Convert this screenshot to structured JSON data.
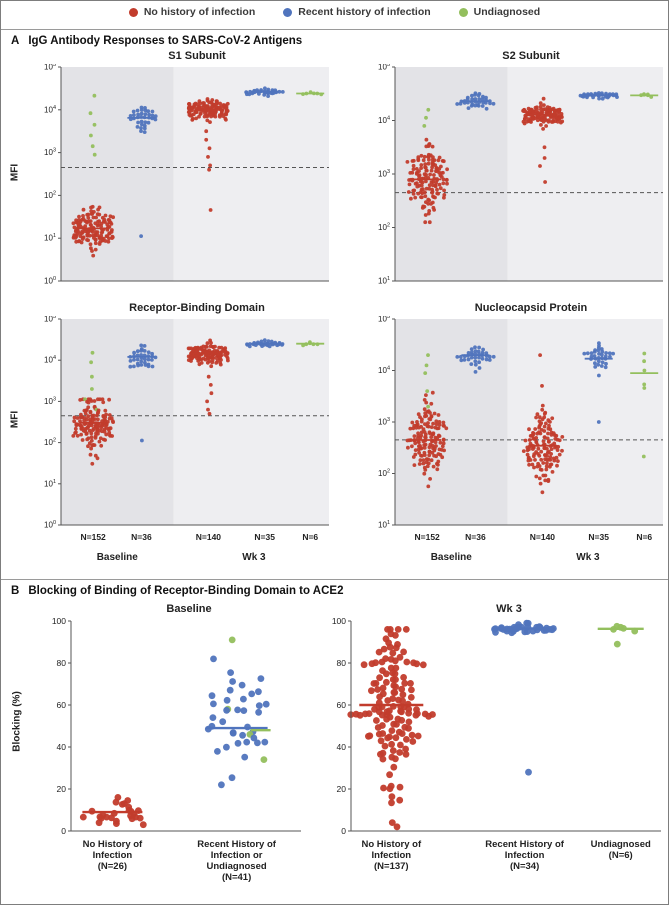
{
  "legend": {
    "items": [
      {
        "color": "red",
        "label": "No history of infection"
      },
      {
        "color": "blue",
        "label": "Recent history of infection"
      },
      {
        "color": "green",
        "label": "Undiagnosed"
      }
    ]
  },
  "chart_data": {
    "type": "scatter",
    "colors": {
      "red": "#c23c2c",
      "blue": "#5074bd",
      "green": "#93bf5d"
    },
    "region_colors": {
      "baseline": "#e3e3e7",
      "wk3": "#eeeef1"
    },
    "panelA": {
      "label": "A",
      "title": "IgG Antibody Responses to SARS-CoV-2 Antigens",
      "ylabel": "MFI",
      "threshold_log": 2.653,
      "regions": [
        {
          "x0": 0,
          "x1": 0.42,
          "key": "baseline"
        },
        {
          "x0": 0.42,
          "x1": 1.0,
          "key": "wk3"
        }
      ],
      "n_labels": [
        "N=152",
        "N=36",
        "N=140",
        "N=35",
        "N=6"
      ],
      "sections": [
        {
          "label": "Baseline",
          "x": 0.21
        },
        {
          "label": "Wk 3",
          "x": 0.72
        }
      ],
      "subplots": [
        {
          "title": "S1 Subunit",
          "scale": "log",
          "ymin": 0,
          "ymax": 5,
          "groups": [
            {
              "color": "red",
              "x": 0.12,
              "n": 146,
              "mu": 1.22,
              "sigma": 0.22,
              "min": 0.45,
              "max": 2.0,
              "median": 1.23,
              "jx": 6,
              "extra": [
                {
                  "v": 4.33,
                  "color": "green"
                },
                {
                  "v": 3.92,
                  "color": "green"
                },
                {
                  "v": 3.65,
                  "color": "green"
                },
                {
                  "v": 3.4,
                  "color": "green"
                },
                {
                  "v": 3.15,
                  "color": "green"
                },
                {
                  "v": 2.95,
                  "color": "green"
                }
              ]
            },
            {
              "color": "blue",
              "x": 0.3,
              "n": 35,
              "mu": 3.82,
              "sigma": 0.18,
              "min": 3.3,
              "max": 4.45,
              "median": 3.81,
              "extra": [
                {
                  "v": 1.05
                }
              ]
            },
            {
              "color": "red",
              "x": 0.55,
              "n": 133,
              "mu": 4.0,
              "sigma": 0.11,
              "min": 3.55,
              "max": 4.45,
              "median": 4.0,
              "jx": 6,
              "extra": [
                {
                  "v": 3.5
                },
                {
                  "v": 3.3
                },
                {
                  "v": 3.1
                },
                {
                  "v": 2.9
                },
                {
                  "v": 2.7
                },
                {
                  "v": 2.6
                },
                {
                  "v": 1.66
                }
              ]
            },
            {
              "color": "blue",
              "x": 0.76,
              "n": 35,
              "mu": 4.42,
              "sigma": 0.035,
              "min": 4.3,
              "max": 4.52,
              "median": 4.42
            },
            {
              "color": "green",
              "x": 0.93,
              "n": 6,
              "mu": 4.38,
              "sigma": 0.03,
              "min": 4.3,
              "max": 4.45,
              "median": 4.38
            }
          ]
        },
        {
          "title": "S2 Subunit",
          "scale": "log",
          "ymin": 1,
          "ymax": 5,
          "groups": [
            {
              "color": "red",
              "x": 0.12,
              "n": 149,
              "mu": 2.92,
              "sigma": 0.3,
              "min": 2.1,
              "max": 4.1,
              "median": 2.9,
              "jx": 6,
              "extra": [
                {
                  "v": 4.2,
                  "color": "green"
                },
                {
                  "v": 4.05,
                  "color": "green"
                },
                {
                  "v": 3.9,
                  "color": "green"
                }
              ]
            },
            {
              "color": "blue",
              "x": 0.3,
              "n": 36,
              "mu": 4.36,
              "sigma": 0.07,
              "min": 4.1,
              "max": 4.55,
              "median": 4.36
            },
            {
              "color": "red",
              "x": 0.55,
              "n": 136,
              "mu": 4.1,
              "sigma": 0.09,
              "min": 3.7,
              "max": 4.45,
              "median": 4.11,
              "jx": 6,
              "extra": [
                {
                  "v": 3.5
                },
                {
                  "v": 3.3
                },
                {
                  "v": 3.15
                },
                {
                  "v": 2.85
                }
              ]
            },
            {
              "color": "blue",
              "x": 0.76,
              "n": 35,
              "mu": 4.47,
              "sigma": 0.03,
              "min": 4.38,
              "max": 4.55,
              "median": 4.47
            },
            {
              "color": "green",
              "x": 0.93,
              "n": 6,
              "mu": 4.47,
              "sigma": 0.02,
              "min": 4.4,
              "max": 4.52,
              "median": 4.47
            }
          ]
        },
        {
          "title": "Receptor-Binding Domain",
          "scale": "log",
          "ymin": 0,
          "ymax": 5,
          "groups": [
            {
              "color": "red",
              "x": 0.12,
              "n": 146,
              "mu": 2.45,
              "sigma": 0.3,
              "min": 1.45,
              "max": 3.05,
              "median": 2.48,
              "jx": 6,
              "extra": [
                {
                  "v": 4.18,
                  "color": "green"
                },
                {
                  "v": 3.95,
                  "color": "green"
                },
                {
                  "v": 3.6,
                  "color": "green"
                },
                {
                  "v": 3.3,
                  "color": "green"
                },
                {
                  "v": 3.05,
                  "color": "green"
                },
                {
                  "v": 2.8,
                  "color": "green"
                }
              ]
            },
            {
              "color": "blue",
              "x": 0.3,
              "n": 35,
              "mu": 4.08,
              "sigma": 0.13,
              "min": 3.7,
              "max": 4.45,
              "median": 4.08,
              "extra": [
                {
                  "v": 2.05
                }
              ]
            },
            {
              "color": "red",
              "x": 0.55,
              "n": 134,
              "mu": 4.15,
              "sigma": 0.1,
              "min": 3.7,
              "max": 4.48,
              "median": 4.17,
              "jx": 6,
              "extra": [
                {
                  "v": 3.6
                },
                {
                  "v": 3.4
                },
                {
                  "v": 3.2
                },
                {
                  "v": 3.0
                },
                {
                  "v": 2.8
                },
                {
                  "v": 2.7
                }
              ]
            },
            {
              "color": "blue",
              "x": 0.76,
              "n": 35,
              "mu": 4.4,
              "sigma": 0.035,
              "min": 4.3,
              "max": 4.5,
              "median": 4.4
            },
            {
              "color": "green",
              "x": 0.93,
              "n": 6,
              "mu": 4.4,
              "sigma": 0.04,
              "min": 4.28,
              "max": 4.48,
              "median": 4.4
            }
          ]
        },
        {
          "title": "Nucleocapsid Protein",
          "scale": "log",
          "ymin": 1,
          "ymax": 5,
          "groups": [
            {
              "color": "red",
              "x": 0.12,
              "n": 147,
              "mu": 2.65,
              "sigma": 0.35,
              "min": 1.75,
              "max": 3.9,
              "median": 2.65,
              "jx": 6,
              "extra": [
                {
                  "v": 4.3,
                  "color": "green"
                },
                {
                  "v": 4.1,
                  "color": "green"
                },
                {
                  "v": 3.95,
                  "color": "green"
                },
                {
                  "v": 3.6,
                  "color": "green"
                },
                {
                  "v": 3.3,
                  "color": "green"
                }
              ]
            },
            {
              "color": "blue",
              "x": 0.3,
              "n": 36,
              "mu": 4.28,
              "sigma": 0.12,
              "min": 3.8,
              "max": 4.6,
              "median": 4.3
            },
            {
              "color": "red",
              "x": 0.55,
              "n": 139,
              "mu": 2.55,
              "sigma": 0.35,
              "min": 1.45,
              "max": 3.7,
              "median": 2.54,
              "jx": 6,
              "extra": [
                {
                  "v": 4.3
                }
              ]
            },
            {
              "color": "blue",
              "x": 0.76,
              "n": 34,
              "mu": 4.22,
              "sigma": 0.15,
              "min": 3.6,
              "max": 4.6,
              "median": 4.23,
              "extra": [
                {
                  "v": 3.0
                }
              ]
            },
            {
              "color": "green",
              "x": 0.93,
              "n": 0,
              "median": 3.95,
              "extra": [
                {
                  "v": 4.33
                },
                {
                  "v": 4.18
                },
                {
                  "v": 4.0
                },
                {
                  "v": 3.73
                },
                {
                  "v": 3.66
                },
                {
                  "v": 2.33
                }
              ]
            }
          ]
        }
      ]
    },
    "panelB": {
      "label": "B",
      "title": "Blocking of Binding of Receptor-Binding Domain to ACE2",
      "ylabel": "Blocking (%)",
      "subplots": [
        {
          "title": "Baseline",
          "scale": "linear",
          "ymin": 0,
          "ymax": 100,
          "yticks": [
            0,
            20,
            40,
            60,
            80,
            100
          ],
          "groups": [
            {
              "color": "red",
              "x": 0.18,
              "n": 26,
              "mu": 9,
              "sigma": 3,
              "min": 3,
              "max": 16,
              "median": 9,
              "medw": 60,
              "maxw": 66,
              "jx": 40,
              "labels": [
                "No History of",
                "Infection",
                "(N=26)"
              ]
            },
            {
              "color": "blue",
              "x": 0.72,
              "n": 37,
              "mu": 53,
              "sigma": 20,
              "min": 22,
              "max": 95,
              "medians": [
                {
                  "v": 49,
                  "color": "blue",
                  "w": 62
                },
                {
                  "v": 48,
                  "color": "green",
                  "w": 20,
                  "dx": 24
                }
              ],
              "maxw": 80,
              "jx": 50,
              "extra": [
                {
                  "v": 34,
                  "color": "green"
                },
                {
                  "v": 46,
                  "color": "green"
                },
                {
                  "v": 58,
                  "color": "green"
                },
                {
                  "v": 91,
                  "color": "green"
                }
              ],
              "labels": [
                "Recent History of",
                "Infection or",
                "Undiagnosed",
                "(N=41)"
              ]
            }
          ]
        },
        {
          "title": "Wk 3",
          "scale": "linear",
          "ymin": 0,
          "ymax": 100,
          "yticks": [
            0,
            20,
            40,
            60,
            80,
            100
          ],
          "groups": [
            {
              "color": "red",
              "x": 0.13,
              "n": 136,
              "mu": 58,
              "sigma": 21,
              "min": 4,
              "max": 96,
              "median": 60,
              "medw": 64,
              "maxw": 88,
              "jx": 6,
              "extra": [
                {
                  "v": 2
                }
              ],
              "labels": [
                "No History of",
                "Infection",
                "(N=137)"
              ]
            },
            {
              "color": "blue",
              "x": 0.56,
              "n": 33,
              "mu": 96.5,
              "sigma": 1.2,
              "min": 93,
              "max": 99,
              "median": 96.5,
              "medw": 56,
              "maxw": 62,
              "jx": 8,
              "extra": [
                {
                  "v": 28
                }
              ],
              "labels": [
                "Recent History of",
                "Infection",
                "(N=34)"
              ]
            },
            {
              "color": "green",
              "x": 0.87,
              "n": 0,
              "median": 96.3,
              "medw": 46,
              "maxw": 50,
              "jx": 10,
              "extra": [
                {
                  "v": 97.5
                },
                {
                  "v": 97
                },
                {
                  "v": 96.5
                },
                {
                  "v": 96
                },
                {
                  "v": 95.2
                },
                {
                  "v": 89
                }
              ],
              "labels": [
                "Undiagnosed",
                "(N=6)"
              ]
            }
          ]
        }
      ]
    }
  }
}
